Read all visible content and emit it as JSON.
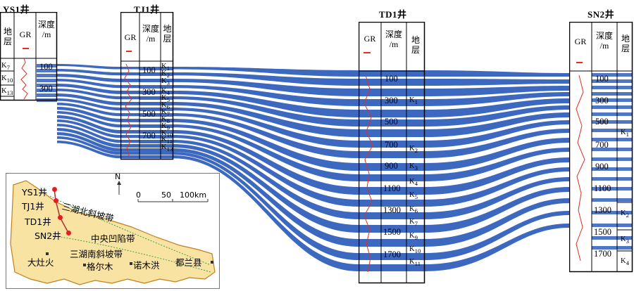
{
  "wells": [
    {
      "id": "ys1",
      "name": "YS1井",
      "cols": [
        "地\n层",
        "GR",
        "深度\n/m"
      ],
      "depths": [
        "100",
        "300"
      ],
      "layers": [
        {
          "k": "K",
          "s": "7"
        },
        {
          "k": "K",
          "s": "10"
        },
        {
          "k": "K",
          "s": "13"
        }
      ]
    },
    {
      "id": "tj1",
      "name": "TJ1井",
      "cols": [
        "GR",
        "深度\n/m",
        "地\n层"
      ],
      "depths": [
        "100",
        "300",
        "500",
        "700"
      ],
      "layers": [
        {
          "k": "K",
          "s": "1"
        },
        {
          "k": "K",
          "s": "2"
        },
        {
          "k": "K",
          "s": "3"
        },
        {
          "k": "K",
          "s": "4"
        },
        {
          "k": "K",
          "s": "5"
        },
        {
          "k": "K",
          "s": "6"
        },
        {
          "k": "K",
          "s": "7"
        },
        {
          "k": "K",
          "s": "8"
        },
        {
          "k": "K",
          "s": "9"
        },
        {
          "k": "K",
          "s": "10"
        },
        {
          "k": "K",
          "s": "11"
        },
        {
          "k": "K",
          "s": "13"
        }
      ]
    },
    {
      "id": "td1",
      "name": "TD1井",
      "cols": [
        "GR",
        "深度\n/m",
        "地\n层"
      ],
      "depths": [
        "100",
        "300",
        "500",
        "700",
        "900",
        "1100",
        "1300",
        "1500",
        "1700"
      ],
      "layers": [
        {
          "k": "K",
          "s": "1"
        },
        {
          "k": "K",
          "s": "2"
        },
        {
          "k": "K",
          "s": "3"
        },
        {
          "k": "K",
          "s": "4"
        },
        {
          "k": "K",
          "s": "5"
        },
        {
          "k": "K",
          "s": "6"
        },
        {
          "k": "K",
          "s": "7"
        },
        {
          "k": "K",
          "s": "9"
        },
        {
          "k": "K",
          "s": "10"
        },
        {
          "k": "K",
          "s": "11"
        }
      ]
    },
    {
      "id": "sn2",
      "name": "SN2井",
      "cols": [
        "GR",
        "深度\n/m",
        "地\n层"
      ],
      "depths": [
        "100",
        "300",
        "500",
        "700",
        "900",
        "1100",
        "1300",
        "1500",
        "1700"
      ],
      "layers": [
        {
          "k": "K",
          "s": "1"
        },
        {
          "k": "K",
          "s": "2"
        },
        {
          "k": "K",
          "s": "3"
        },
        {
          "k": "K",
          "s": "4"
        }
      ]
    }
  ],
  "map": {
    "north": "N",
    "scale": {
      "zero": "0",
      "mid": "50",
      "end": "100km"
    },
    "wells": [
      "YS1井",
      "TJ1井",
      "TD1井",
      "SN2井"
    ],
    "zones": [
      "三湖北斜坡带",
      "中央凹陷带",
      "三湖南斜坡带"
    ],
    "towns": [
      "大灶火",
      "格尔木",
      "诺木洪",
      "都兰县"
    ]
  },
  "colors": {
    "layer": "#3d68bf",
    "gr": "#e03020",
    "sand": "#f8e3a3",
    "dot": "#e02020"
  }
}
